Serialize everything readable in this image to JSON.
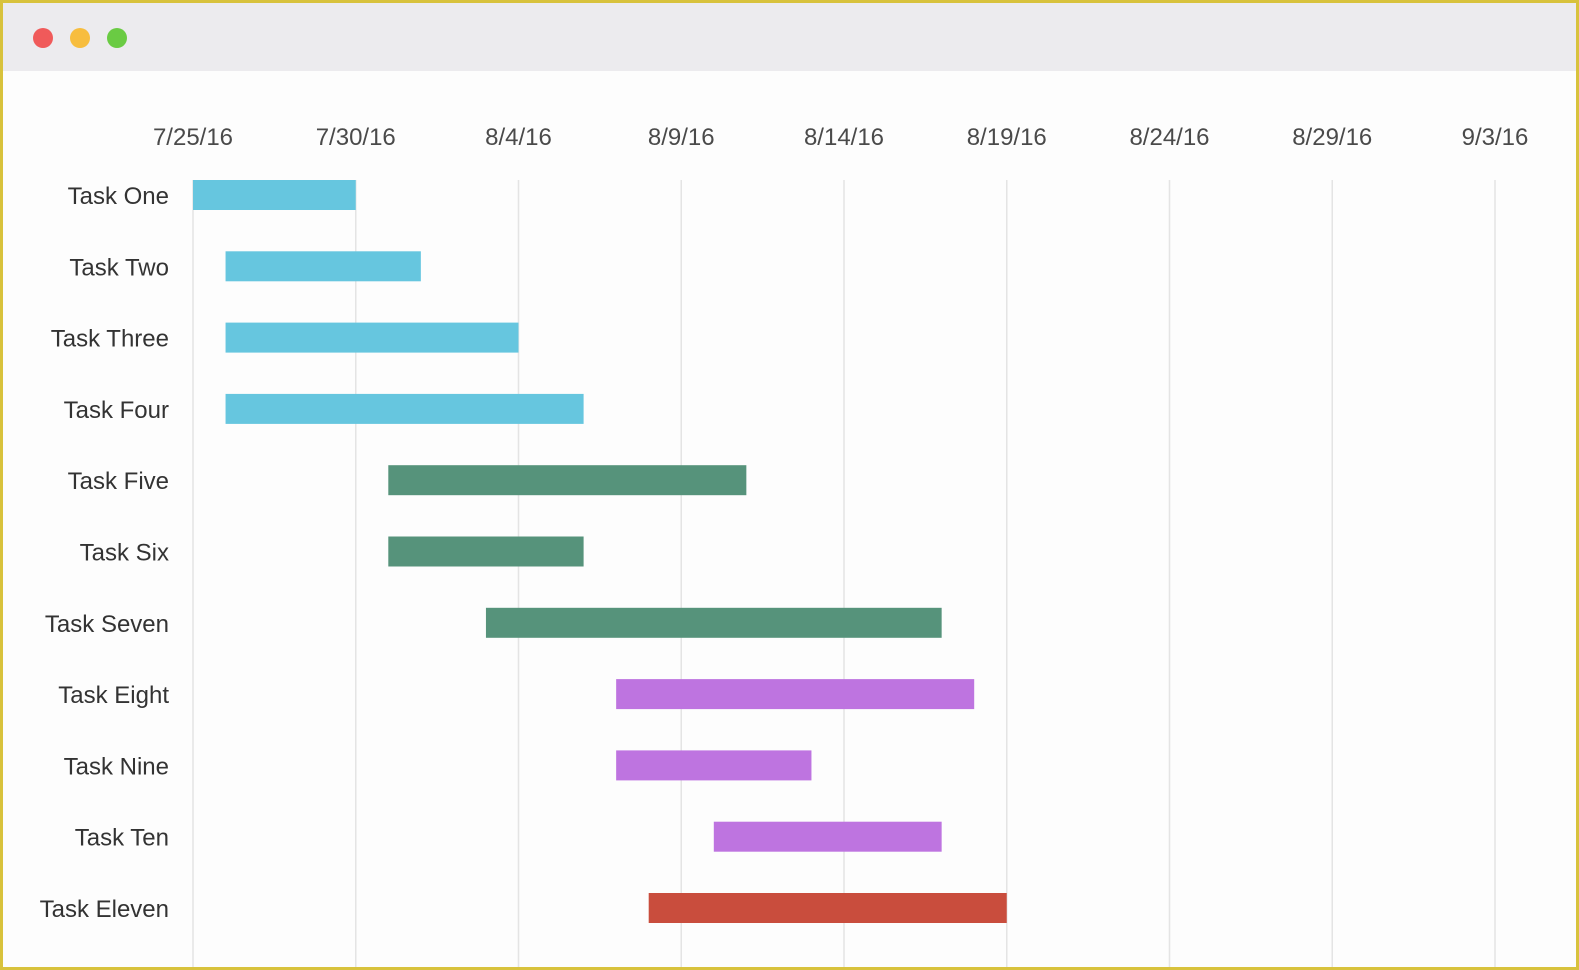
{
  "window": {
    "lights": [
      {
        "name": "close",
        "color": "#f05a5a"
      },
      {
        "name": "minimize",
        "color": "#f7bd3e"
      },
      {
        "name": "maximize",
        "color": "#6acb43"
      }
    ]
  },
  "chart_data": {
    "type": "gantt",
    "title": "",
    "xlabel": "",
    "ylabel": "",
    "x_axis": {
      "start": "2016-07-25",
      "end": "2016-09-03",
      "tick_dates": [
        "2016-07-25",
        "2016-07-30",
        "2016-08-04",
        "2016-08-09",
        "2016-08-14",
        "2016-08-19",
        "2016-08-24",
        "2016-08-29",
        "2016-09-03"
      ],
      "tick_labels": [
        "7/25/16",
        "7/30/16",
        "8/4/16",
        "8/9/16",
        "8/14/16",
        "8/19/16",
        "8/24/16",
        "8/29/16",
        "9/3/16"
      ]
    },
    "grid": true,
    "tasks": [
      {
        "name": "Task One",
        "start": "2016-07-25",
        "end": "2016-07-30",
        "color": "#66c6df"
      },
      {
        "name": "Task Two",
        "start": "2016-07-26",
        "end": "2016-08-01",
        "color": "#66c6df"
      },
      {
        "name": "Task Three",
        "start": "2016-07-26",
        "end": "2016-08-04",
        "color": "#66c6df"
      },
      {
        "name": "Task Four",
        "start": "2016-07-26",
        "end": "2016-08-06",
        "color": "#66c6df"
      },
      {
        "name": "Task Five",
        "start": "2016-07-31",
        "end": "2016-08-11",
        "color": "#56937b"
      },
      {
        "name": "Task Six",
        "start": "2016-07-31",
        "end": "2016-08-06",
        "color": "#56937b"
      },
      {
        "name": "Task Seven",
        "start": "2016-08-03",
        "end": "2016-08-17",
        "color": "#56937b"
      },
      {
        "name": "Task Eight",
        "start": "2016-08-07",
        "end": "2016-08-18",
        "color": "#be74e0"
      },
      {
        "name": "Task Nine",
        "start": "2016-08-07",
        "end": "2016-08-13",
        "color": "#be74e0"
      },
      {
        "name": "Task Ten",
        "start": "2016-08-10",
        "end": "2016-08-17",
        "color": "#be74e0"
      },
      {
        "name": "Task Eleven",
        "start": "2016-08-08",
        "end": "2016-08-19",
        "color": "#c94d3d"
      }
    ]
  }
}
